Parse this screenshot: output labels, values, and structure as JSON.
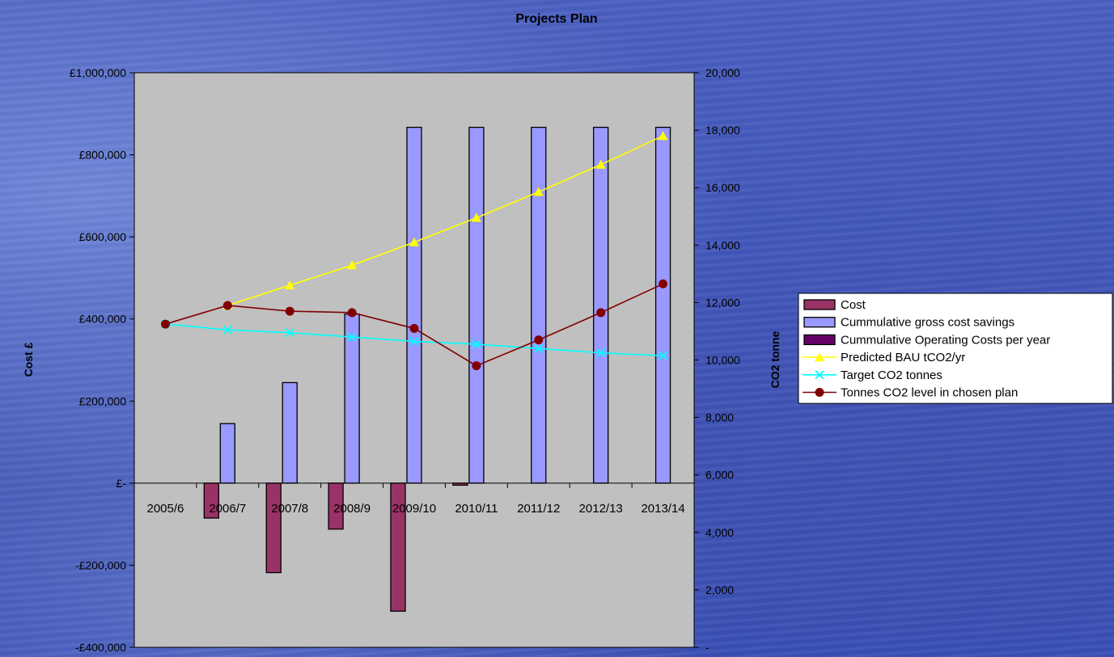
{
  "chart_data": {
    "type": "bar",
    "title": "Projects Plan",
    "ylabel": "Cost £",
    "y2label": "CO2 tonne",
    "categories": [
      "2005/6",
      "2006/7",
      "2007/8",
      "2008/9",
      "2009/10",
      "2010/11",
      "2011/12",
      "2012/13",
      "2013/14"
    ],
    "ylim": [
      -400000,
      1000000
    ],
    "y2lim": [
      0,
      20000
    ],
    "yticks": [
      {
        "value": 1000000,
        "label": "£1,000,000"
      },
      {
        "value": 800000,
        "label": "£800,000"
      },
      {
        "value": 600000,
        "label": "£600,000"
      },
      {
        "value": 400000,
        "label": "£400,000"
      },
      {
        "value": 200000,
        "label": "£200,000"
      },
      {
        "value": 0,
        "label": "£-"
      },
      {
        "value": -200000,
        "label": "-£200,000"
      },
      {
        "value": -400000,
        "label": "-£400,000"
      }
    ],
    "y2ticks": [
      {
        "value": 20000,
        "label": "20,000"
      },
      {
        "value": 18000,
        "label": "18,000"
      },
      {
        "value": 16000,
        "label": "16,000"
      },
      {
        "value": 14000,
        "label": "14,000"
      },
      {
        "value": 12000,
        "label": "12,000"
      },
      {
        "value": 10000,
        "label": "10,000"
      },
      {
        "value": 8000,
        "label": "8,000"
      },
      {
        "value": 6000,
        "label": "6,000"
      },
      {
        "value": 4000,
        "label": "4,000"
      },
      {
        "value": 2000,
        "label": "2,000"
      },
      {
        "value": 0,
        "label": "-"
      }
    ],
    "bar_series": [
      {
        "name": "Cost",
        "color": "#993366",
        "values": [
          0,
          -85000,
          -218000,
          -112000,
          -312000,
          -5000,
          0,
          0,
          0
        ]
      },
      {
        "name": "Cummulative gross cost savings",
        "color": "#9999ff",
        "values": [
          0,
          145000,
          245000,
          412000,
          867000,
          867000,
          867000,
          867000,
          867000
        ]
      },
      {
        "name": "Cummulative Operating Costs per year",
        "color": "#660066",
        "values": [
          0,
          0,
          0,
          0,
          0,
          0,
          0,
          0,
          0
        ]
      }
    ],
    "line_series": [
      {
        "name": "Predicted BAU tCO2/yr",
        "color": "#ffff00",
        "marker": "triangle",
        "values": [
          null,
          11900,
          12600,
          13300,
          14100,
          14950,
          15850,
          16800,
          17800
        ]
      },
      {
        "name": "Target CO2 tonnes",
        "color": "#00ffff",
        "marker": "x",
        "values": [
          11250,
          11050,
          10950,
          10800,
          10650,
          10550,
          10400,
          10250,
          10150
        ]
      },
      {
        "name": "Tonnes CO2 level in chosen plan",
        "color": "#800000",
        "marker": "circle",
        "values": [
          11250,
          11900,
          11700,
          11650,
          11100,
          9800,
          10700,
          11650,
          12650
        ]
      }
    ],
    "legend_position": "right",
    "grid": false
  }
}
